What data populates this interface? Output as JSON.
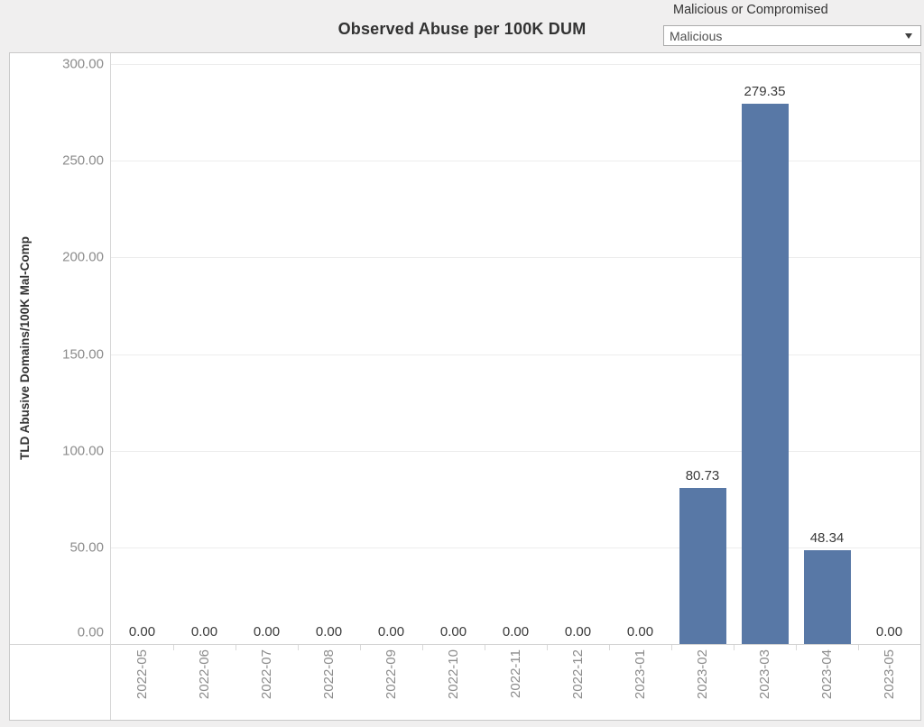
{
  "header": {
    "title": "Observed Abuse per 100K DUM"
  },
  "filter": {
    "label": "Malicious or Compromised",
    "selected": "Malicious",
    "caret_icon": "chevron-down"
  },
  "colors": {
    "bar": "#5878a6",
    "background": "#f0efef",
    "plot_background": "#ffffff",
    "gridline": "#ededed",
    "tick_text": "#8c8c8c",
    "label_text": "#3a3a3a"
  },
  "chart_data": {
    "type": "bar",
    "title": "Observed Abuse per 100K DUM",
    "xlabel": "",
    "ylabel": "TLD Abusive Domains/100K Mal-Comp",
    "ylim": [
      0,
      300
    ],
    "grid": true,
    "legend": "none",
    "bar_color": "#5878a6",
    "categories": [
      "2022-05",
      "2022-06",
      "2022-07",
      "2022-08",
      "2022-09",
      "2022-10",
      "2022-11",
      "2022-12",
      "2023-01",
      "2023-02",
      "2023-03",
      "2023-04",
      "2023-05"
    ],
    "values": [
      0,
      0,
      0,
      0,
      0,
      0,
      0,
      0,
      0,
      80.73,
      279.35,
      48.34,
      0
    ],
    "bar_labels": [
      "0.00",
      "0.00",
      "0.00",
      "0.00",
      "0.00",
      "0.00",
      "0.00",
      "0.00",
      "0.00",
      "80.73",
      "279.35",
      "48.34",
      "0.00"
    ],
    "yticks": [
      {
        "value": 0,
        "label": "0.00"
      },
      {
        "value": 50,
        "label": "50.00"
      },
      {
        "value": 100,
        "label": "100.00"
      },
      {
        "value": 150,
        "label": "150.00"
      },
      {
        "value": 200,
        "label": "200.00"
      },
      {
        "value": 250,
        "label": "250.00"
      },
      {
        "value": 300,
        "label": "300.00"
      }
    ]
  }
}
